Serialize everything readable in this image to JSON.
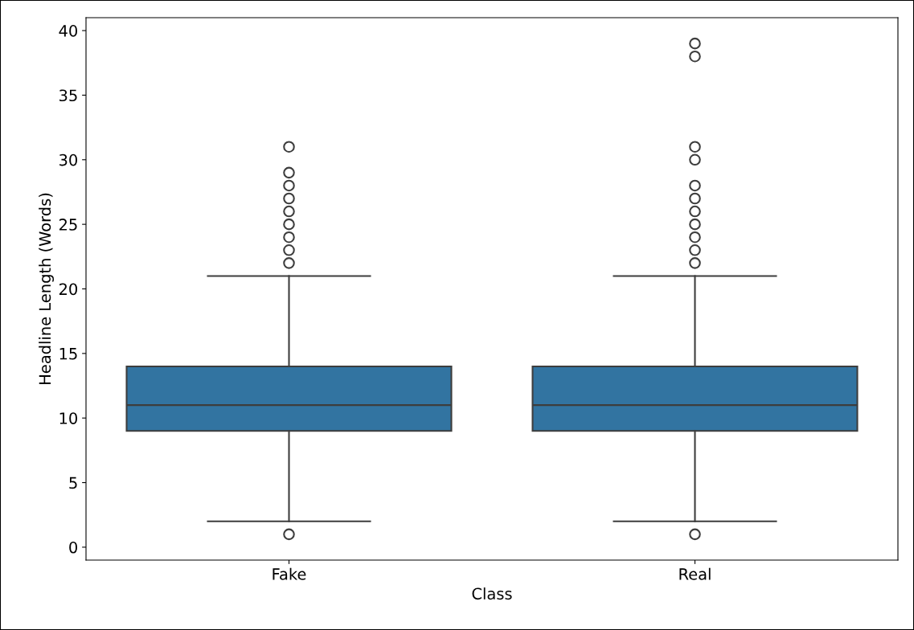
{
  "chart_data": {
    "type": "box",
    "xlabel": "Class",
    "ylabel": "Headline Length (Words)",
    "categories": [
      "Fake",
      "Real"
    ],
    "color": "#3274a1",
    "boxes": [
      {
        "low": 2,
        "q1": 9,
        "median": 11,
        "q3": 14,
        "high": 21,
        "outliers": [
          1,
          22,
          23,
          24,
          25,
          26,
          27,
          28,
          29,
          31
        ]
      },
      {
        "low": 2,
        "q1": 9,
        "median": 11,
        "q3": 14,
        "high": 21,
        "outliers": [
          1,
          22,
          23,
          24,
          25,
          26,
          27,
          28,
          30,
          31,
          38,
          39
        ]
      }
    ],
    "ylim": [
      -1,
      41
    ],
    "yticks": [
      0,
      5,
      10,
      15,
      20,
      25,
      30,
      35,
      40
    ],
    "grid": false
  }
}
